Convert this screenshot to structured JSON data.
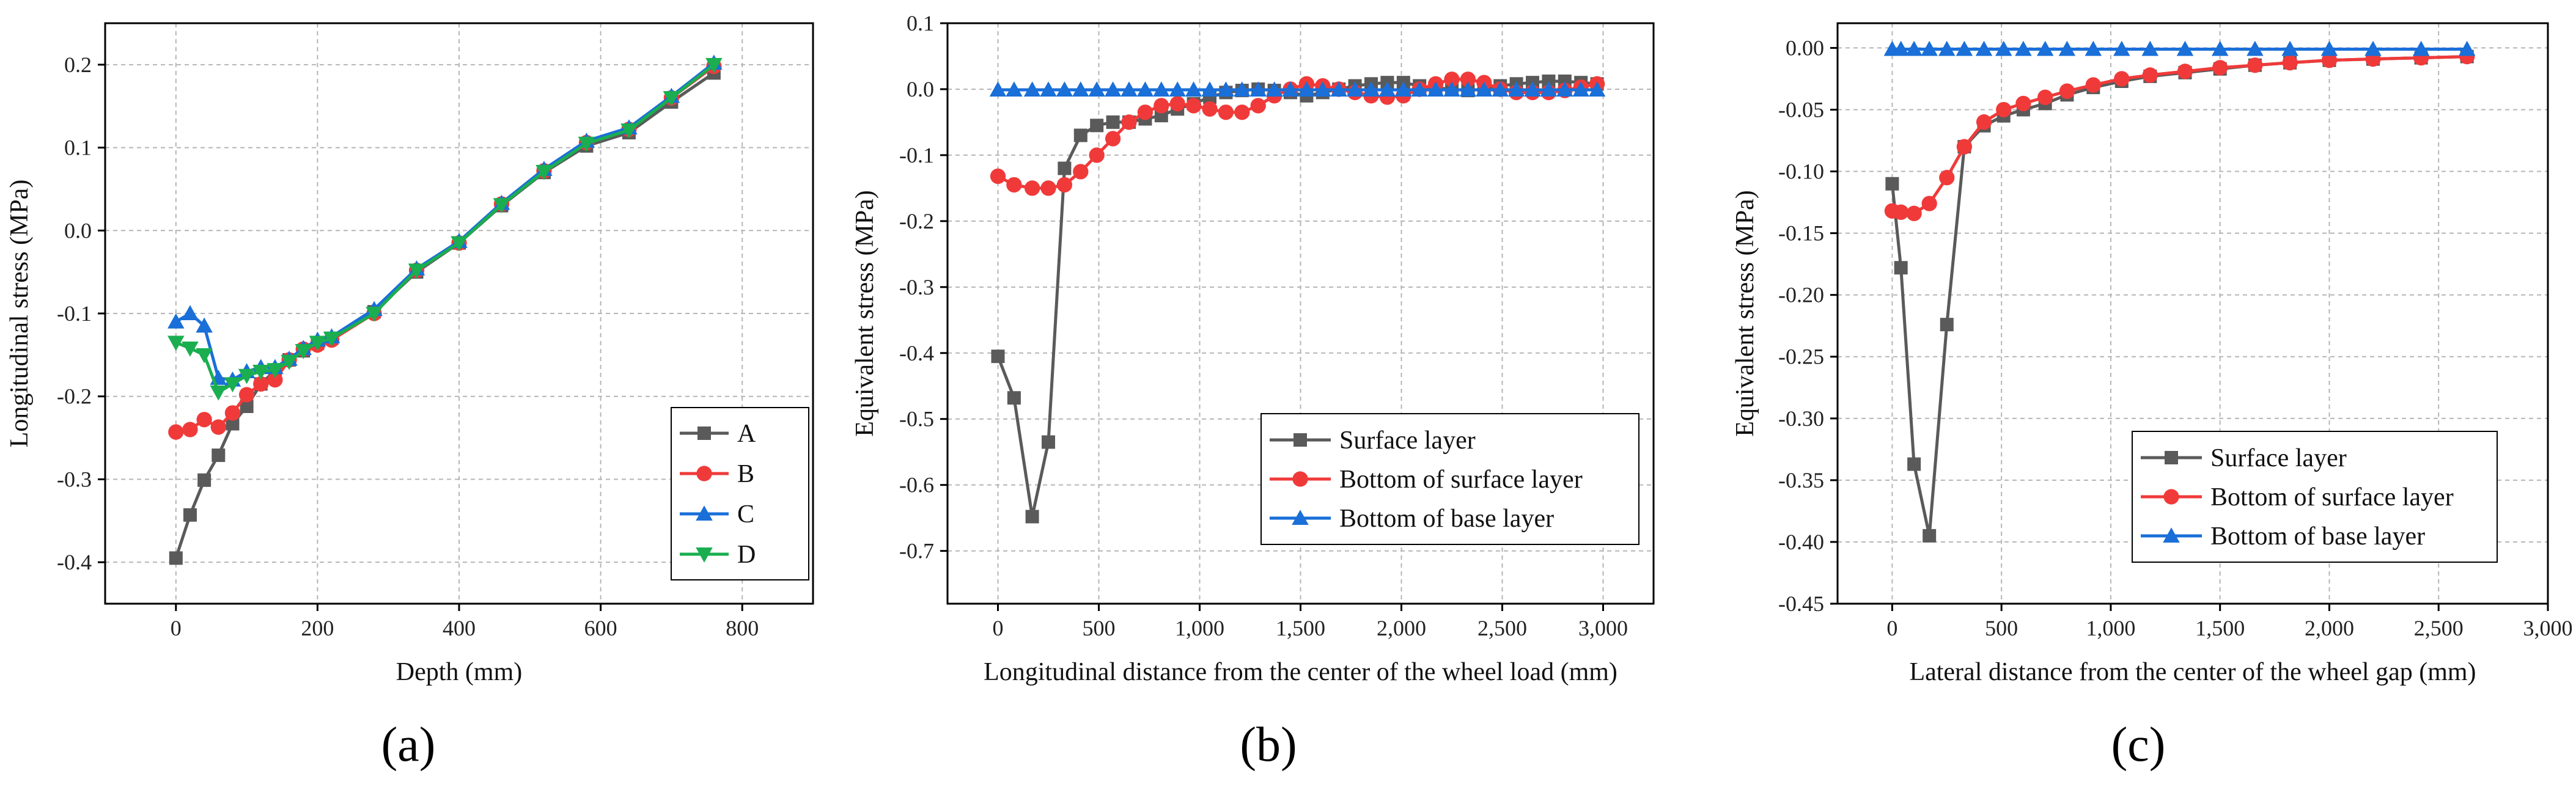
{
  "figure": {
    "panel_labels": [
      "(a)",
      "(b)",
      "(c)"
    ]
  },
  "colors": {
    "gray": "#5a5a5a",
    "red": "#f03a3a",
    "blue": "#1a6fd8",
    "green": "#1aae50",
    "grid": "#b5b5b5",
    "axis": "#000000"
  },
  "chart_data": [
    {
      "type": "line",
      "title": "",
      "xlabel": "Depth (mm)",
      "ylabel": "Longitudinal stress (MPa)",
      "xlim": [
        -100,
        900
      ],
      "ylim": [
        -0.45,
        0.25
      ],
      "xticks": [
        0,
        200,
        400,
        600,
        800
      ],
      "xtick_labels": [
        "0",
        "200",
        "400",
        "600",
        "800"
      ],
      "yticks": [
        -0.4,
        -0.3,
        -0.2,
        -0.1,
        0.0,
        0.1,
        0.2
      ],
      "ytick_labels": [
        "-0.4",
        "-0.3",
        "-0.2",
        "-0.1",
        "0.0",
        "0.1",
        "0.2"
      ],
      "grid": true,
      "legend_position": "bottom-right",
      "series": [
        {
          "name": "A",
          "color": "gray",
          "marker": "square",
          "x": [
            0,
            20,
            40,
            60,
            80,
            100,
            120,
            140,
            160,
            180,
            200,
            220,
            280,
            340,
            400,
            460,
            520,
            580,
            640,
            700,
            760
          ],
          "y": [
            -0.395,
            -0.343,
            -0.301,
            -0.271,
            -0.233,
            -0.212,
            -0.185,
            -0.169,
            -0.156,
            -0.145,
            -0.136,
            -0.13,
            -0.098,
            -0.05,
            -0.015,
            0.03,
            0.07,
            0.102,
            0.118,
            0.155,
            0.19
          ]
        },
        {
          "name": "B",
          "color": "red",
          "marker": "circle",
          "x": [
            0,
            20,
            40,
            60,
            80,
            100,
            120,
            140,
            160,
            180,
            200,
            220,
            280,
            340,
            400,
            460,
            520,
            580,
            640,
            700,
            760
          ],
          "y": [
            -0.243,
            -0.24,
            -0.228,
            -0.237,
            -0.22,
            -0.198,
            -0.185,
            -0.18,
            -0.156,
            -0.143,
            -0.138,
            -0.132,
            -0.1,
            -0.048,
            -0.015,
            0.032,
            0.072,
            0.106,
            0.122,
            0.16,
            0.198
          ]
        },
        {
          "name": "C",
          "color": "blue",
          "marker": "triangle-up",
          "x": [
            0,
            20,
            40,
            60,
            80,
            100,
            120,
            140,
            160,
            180,
            200,
            220,
            280,
            340,
            400,
            460,
            520,
            580,
            640,
            700,
            760
          ],
          "y": [
            -0.11,
            -0.1,
            -0.115,
            -0.178,
            -0.18,
            -0.17,
            -0.165,
            -0.165,
            -0.155,
            -0.142,
            -0.132,
            -0.128,
            -0.095,
            -0.046,
            -0.013,
            0.033,
            0.074,
            0.108,
            0.124,
            0.162,
            0.202
          ]
        },
        {
          "name": "D",
          "color": "green",
          "marker": "triangle-down",
          "x": [
            0,
            20,
            40,
            60,
            80,
            100,
            120,
            140,
            160,
            180,
            200,
            220,
            280,
            340,
            400,
            460,
            520,
            580,
            640,
            700,
            760
          ],
          "y": [
            -0.135,
            -0.142,
            -0.15,
            -0.195,
            -0.185,
            -0.175,
            -0.17,
            -0.168,
            -0.158,
            -0.145,
            -0.135,
            -0.13,
            -0.1,
            -0.048,
            -0.015,
            0.031,
            0.071,
            0.105,
            0.121,
            0.16,
            0.2
          ]
        }
      ]
    },
    {
      "type": "line",
      "title": "",
      "xlabel": "Longitudinal distance from the center of the wheel load (mm)",
      "ylabel": "Equivalent stress (MPa)",
      "xlim": [
        -250,
        3250
      ],
      "ylim": [
        -0.78,
        0.1
      ],
      "xticks": [
        0,
        500,
        1000,
        1500,
        2000,
        2500,
        3000
      ],
      "xtick_labels": [
        "0",
        "500",
        "1,000",
        "1,500",
        "2,000",
        "2,500",
        "3,000"
      ],
      "yticks": [
        -0.7,
        -0.6,
        -0.5,
        -0.4,
        -0.3,
        -0.2,
        -0.1,
        0.0,
        0.1
      ],
      "ytick_labels": [
        "-0.7",
        "-0.6",
        "-0.5",
        "-0.4",
        "-0.3",
        "-0.2",
        "-0.1",
        "0.0",
        "0.1"
      ],
      "grid": true,
      "legend_position": "center-right",
      "series": [
        {
          "name": "Surface layer",
          "color": "gray",
          "marker": "square",
          "x": [
            0,
            80,
            170,
            250,
            330,
            410,
            490,
            570,
            650,
            730,
            810,
            890,
            970,
            1050,
            1130,
            1210,
            1290,
            1370,
            1450,
            1530,
            1610,
            1690,
            1770,
            1850,
            1930,
            2010,
            2090,
            2170,
            2250,
            2330,
            2410,
            2490,
            2570,
            2650,
            2730,
            2810,
            2890,
            2970
          ],
          "y": [
            -0.405,
            -0.468,
            -0.648,
            -0.535,
            -0.12,
            -0.07,
            -0.055,
            -0.05,
            -0.05,
            -0.045,
            -0.04,
            -0.03,
            -0.022,
            -0.012,
            -0.005,
            -0.002,
            0.0,
            -0.002,
            -0.005,
            -0.01,
            -0.005,
            0.0,
            0.005,
            0.008,
            0.01,
            0.01,
            0.005,
            0.002,
            0.0,
            -0.002,
            0.0,
            0.005,
            0.008,
            0.01,
            0.012,
            0.012,
            0.01,
            0.008
          ]
        },
        {
          "name": "Bottom of surface layer",
          "color": "red",
          "marker": "circle",
          "x": [
            0,
            80,
            170,
            250,
            330,
            410,
            490,
            570,
            650,
            730,
            810,
            890,
            970,
            1050,
            1130,
            1210,
            1290,
            1370,
            1450,
            1530,
            1610,
            1690,
            1770,
            1850,
            1930,
            2010,
            2090,
            2170,
            2250,
            2330,
            2410,
            2490,
            2570,
            2650,
            2730,
            2810,
            2890,
            2970
          ],
          "y": [
            -0.132,
            -0.145,
            -0.15,
            -0.15,
            -0.145,
            -0.125,
            -0.1,
            -0.075,
            -0.05,
            -0.035,
            -0.025,
            -0.022,
            -0.025,
            -0.03,
            -0.035,
            -0.035,
            -0.025,
            -0.01,
            0.0,
            0.008,
            0.005,
            0.0,
            -0.005,
            -0.01,
            -0.012,
            -0.01,
            0.0,
            0.008,
            0.015,
            0.015,
            0.01,
            0.0,
            -0.005,
            -0.005,
            -0.005,
            -0.002,
            0.003,
            0.008
          ]
        },
        {
          "name": "Bottom of base layer",
          "color": "blue",
          "marker": "triangle-up",
          "x": [
            0,
            80,
            170,
            250,
            330,
            410,
            490,
            570,
            650,
            730,
            810,
            890,
            970,
            1050,
            1130,
            1210,
            1290,
            1370,
            1450,
            1530,
            1610,
            1690,
            1770,
            1850,
            1930,
            2010,
            2090,
            2170,
            2250,
            2330,
            2410,
            2490,
            2570,
            2650,
            2730,
            2810,
            2890,
            2970
          ],
          "y": [
            -0.001,
            -0.001,
            -0.001,
            -0.001,
            -0.001,
            -0.001,
            -0.001,
            -0.001,
            -0.001,
            -0.001,
            -0.001,
            -0.001,
            -0.001,
            -0.001,
            -0.001,
            -0.001,
            -0.001,
            -0.001,
            -0.001,
            -0.001,
            -0.001,
            -0.001,
            -0.001,
            -0.001,
            -0.001,
            -0.001,
            -0.001,
            -0.001,
            -0.001,
            -0.001,
            -0.001,
            -0.001,
            -0.001,
            -0.001,
            -0.001,
            -0.001,
            -0.001,
            -0.001
          ]
        }
      ]
    },
    {
      "type": "line",
      "title": "",
      "xlabel": "Lateral distance from the center of the wheel gap (mm)",
      "ylabel": "Equivalent stress (MPa)",
      "xlim": [
        -250,
        3000
      ],
      "ylim": [
        -0.45,
        0.02
      ],
      "xticks": [
        0,
        500,
        1000,
        1500,
        2000,
        2500,
        3000
      ],
      "xtick_labels": [
        "0",
        "500",
        "1,000",
        "1,500",
        "2,000",
        "2,500",
        "3,000"
      ],
      "yticks": [
        -0.45,
        -0.4,
        -0.35,
        -0.3,
        -0.25,
        -0.2,
        -0.15,
        -0.1,
        -0.05,
        0.0
      ],
      "ytick_labels": [
        "-0.45",
        "-0.40",
        "-0.35",
        "-0.30",
        "-0.25",
        "-0.20",
        "-0.15",
        "-0.10",
        "-0.05",
        "0.00"
      ],
      "grid": true,
      "legend_position": "bottom-right",
      "series": [
        {
          "name": "Surface layer",
          "color": "gray",
          "marker": "square",
          "x": [
            0,
            40,
            100,
            170,
            250,
            330,
            420,
            510,
            600,
            700,
            800,
            920,
            1050,
            1180,
            1340,
            1500,
            1660,
            1820,
            2000,
            2200,
            2420,
            2630
          ],
          "y": [
            -0.11,
            -0.178,
            -0.337,
            -0.395,
            -0.224,
            -0.08,
            -0.063,
            -0.055,
            -0.05,
            -0.045,
            -0.038,
            -0.032,
            -0.027,
            -0.023,
            -0.02,
            -0.017,
            -0.014,
            -0.012,
            -0.01,
            -0.009,
            -0.008,
            -0.007
          ]
        },
        {
          "name": "Bottom of surface layer",
          "color": "red",
          "marker": "circle",
          "x": [
            0,
            40,
            100,
            170,
            250,
            330,
            420,
            510,
            600,
            700,
            800,
            920,
            1050,
            1180,
            1340,
            1500,
            1660,
            1820,
            2000,
            2200,
            2420,
            2630
          ],
          "y": [
            -0.132,
            -0.133,
            -0.134,
            -0.126,
            -0.105,
            -0.08,
            -0.06,
            -0.05,
            -0.045,
            -0.04,
            -0.035,
            -0.03,
            -0.025,
            -0.022,
            -0.019,
            -0.016,
            -0.014,
            -0.012,
            -0.01,
            -0.009,
            -0.008,
            -0.007
          ]
        },
        {
          "name": "Bottom of base layer",
          "color": "blue",
          "marker": "triangle-up",
          "x": [
            0,
            40,
            100,
            170,
            250,
            330,
            420,
            510,
            600,
            700,
            800,
            920,
            1050,
            1180,
            1340,
            1500,
            1660,
            1820,
            2000,
            2200,
            2420,
            2630
          ],
          "y": [
            -0.001,
            -0.001,
            -0.001,
            -0.001,
            -0.001,
            -0.001,
            -0.001,
            -0.001,
            -0.001,
            -0.001,
            -0.001,
            -0.001,
            -0.001,
            -0.001,
            -0.001,
            -0.001,
            -0.001,
            -0.001,
            -0.001,
            -0.001,
            -0.001,
            -0.001
          ]
        }
      ]
    }
  ]
}
